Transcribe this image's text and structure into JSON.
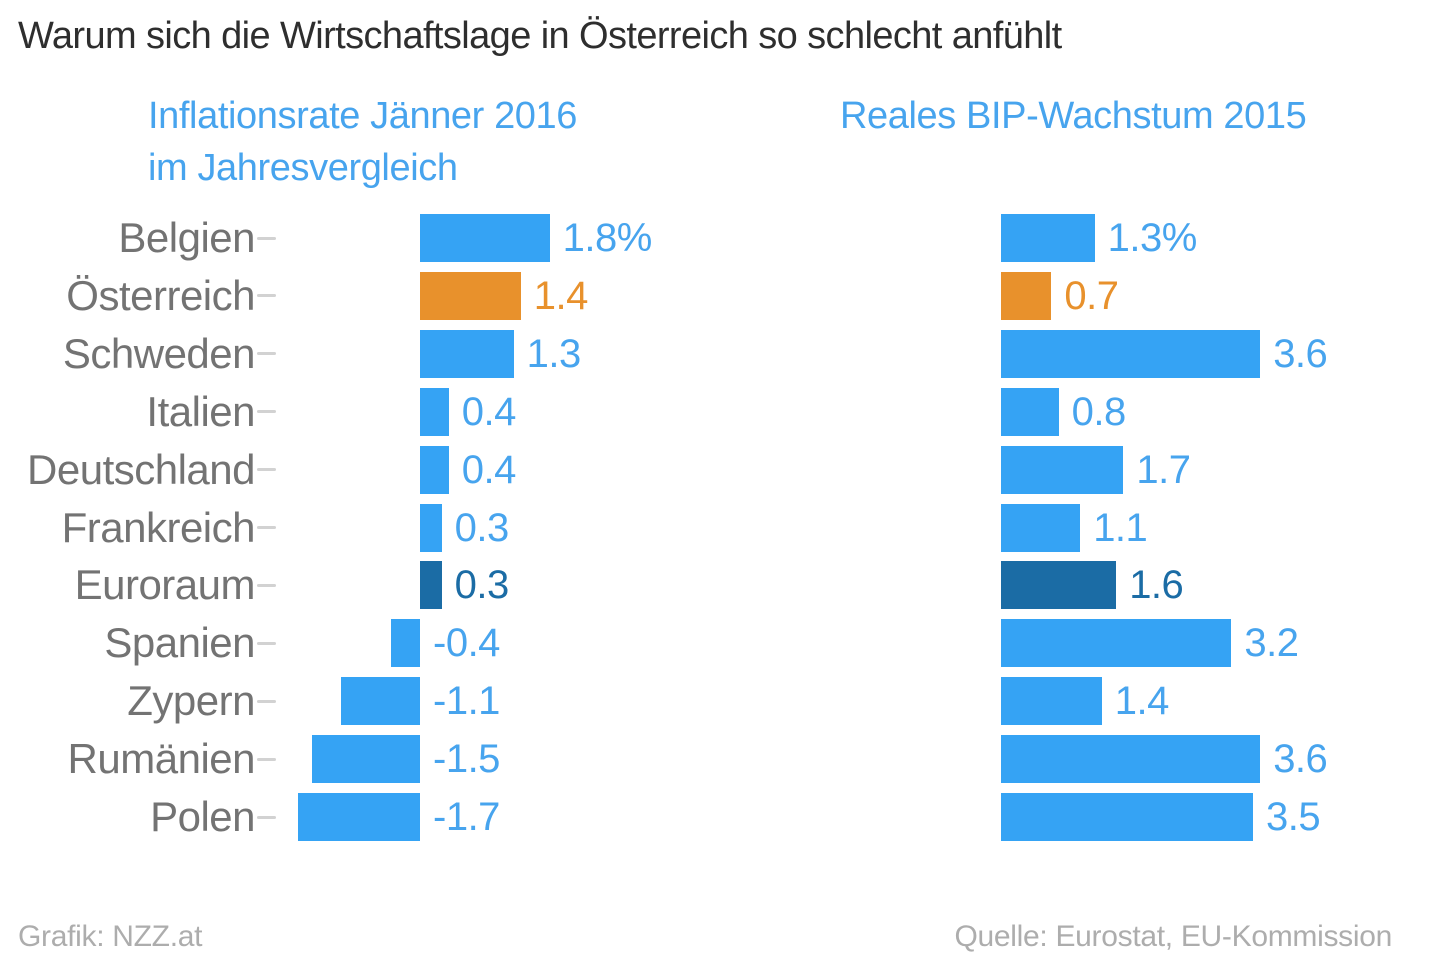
{
  "header": {
    "title": "Warum sich die Wirtschaftslage in Österreich so schlecht anfühlt",
    "left_subtitle_line1": "Inflationsrate Jänner 2016",
    "left_subtitle_line2": "im Jahresvergleich",
    "right_subtitle": "Reales BIP-Wachstum 2015"
  },
  "footer": {
    "credit": "Grafik: NZZ.at",
    "source": "Quelle: Eurostat, EU-Kommission"
  },
  "chart_data": {
    "type": "bar",
    "orientation": "horizontal",
    "title": "Warum sich die Wirtschaftslage in Österreich so schlecht anfühlt",
    "categories": [
      "Belgien",
      "Österreich",
      "Schweden",
      "Italien",
      "Deutschland",
      "Frankreich",
      "Euroraum",
      "Spanien",
      "Zypern",
      "Rumänien",
      "Polen"
    ],
    "series": [
      {
        "name": "Inflationsrate Jänner 2016 im Jahresvergleich",
        "unit": "%",
        "values": [
          1.8,
          1.4,
          1.3,
          0.4,
          0.4,
          0.3,
          0.3,
          -0.4,
          -1.1,
          -1.5,
          -1.7
        ],
        "value_labels": [
          "1.8%",
          "1.4",
          "1.3",
          "0.4",
          "0.4",
          "0.3",
          "0.3",
          "-0.4",
          "-1.1",
          "-1.5",
          "-1.7"
        ]
      },
      {
        "name": "Reales BIP-Wachstum 2015",
        "unit": "%",
        "values": [
          1.3,
          0.7,
          3.6,
          0.8,
          1.7,
          1.1,
          1.6,
          3.2,
          1.4,
          3.6,
          3.5
        ],
        "value_labels": [
          "1.3%",
          "0.7",
          "3.6",
          "0.8",
          "1.7",
          "1.1",
          "1.6",
          "3.2",
          "1.4",
          "3.6",
          "3.5"
        ]
      }
    ],
    "highlight_rows": {
      "1": "orange",
      "6": "dark"
    },
    "colors": {
      "blue_bar": "#35a3f4",
      "blue_value": "#47a4ee",
      "orange": "#e8912c",
      "dark": "#1b6ca5",
      "category_label": "#737373",
      "tick_dash": "#d2d2d2"
    },
    "legend_position": "none",
    "grid": false,
    "axis_labels_hidden": true
  }
}
